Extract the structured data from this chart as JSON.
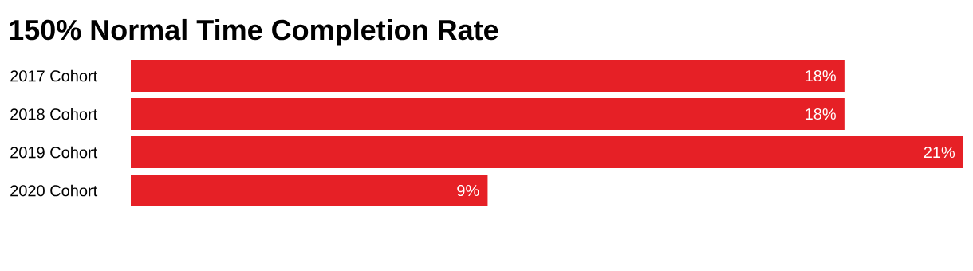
{
  "chart_data": {
    "type": "bar",
    "orientation": "horizontal",
    "title": "150% Normal Time Completion Rate",
    "categories": [
      "2017 Cohort",
      "2018 Cohort",
      "2019 Cohort",
      "2020 Cohort"
    ],
    "values": [
      18,
      18,
      21,
      9
    ],
    "value_labels": [
      "18%",
      "18%",
      "21%",
      "9%"
    ],
    "color": "#e62026"
  }
}
